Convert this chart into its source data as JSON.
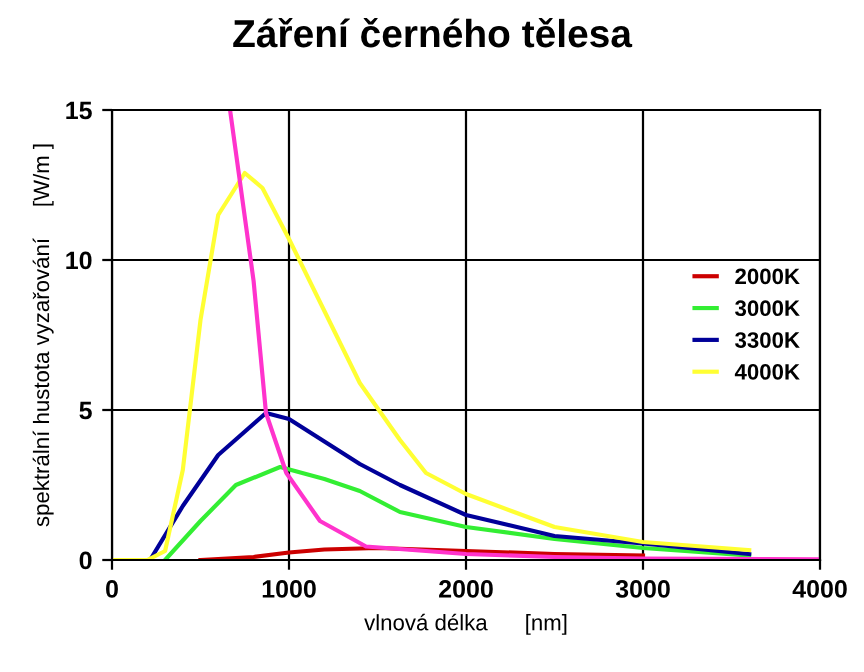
{
  "chart_data": {
    "type": "line",
    "title": "Záření černého tělesa",
    "xlabel": "vlnová délka      [nm]",
    "ylabel": "spektrální hustota vyzařování     [W/m ]",
    "xlim": [
      0,
      4000
    ],
    "ylim": [
      0,
      15
    ],
    "xticks": [
      0,
      1000,
      2000,
      3000,
      4000
    ],
    "yticks": [
      0,
      5,
      10,
      15
    ],
    "grid": true,
    "legend": "right",
    "marker": "none",
    "line_style": "solid",
    "series": [
      {
        "name": "2000K",
        "color": "#cc0000",
        "x": [
          500,
          800,
          1000,
          1200,
          1500,
          2000,
          2500,
          3000
        ],
        "values": [
          0,
          0.1,
          0.25,
          0.35,
          0.4,
          0.3,
          0.2,
          0.15
        ]
      },
      {
        "name": "3000K",
        "color": "#33ee33",
        "x": [
          300,
          500,
          700,
          950,
          1200,
          1400,
          1627,
          2000,
          2500,
          3000,
          3600
        ],
        "values": [
          0,
          1.3,
          2.5,
          3.1,
          2.7,
          2.3,
          1.6,
          1.1,
          0.7,
          0.4,
          0.15
        ]
      },
      {
        "name": "3300K",
        "color": "#000099",
        "x": [
          215,
          400,
          600,
          870,
          1000,
          1400,
          1627,
          2000,
          2500,
          3000,
          3600
        ],
        "values": [
          0,
          1.8,
          3.5,
          4.9,
          4.7,
          3.2,
          2.5,
          1.5,
          0.8,
          0.55,
          0.2
        ]
      },
      {
        "name": "4000K",
        "color": "#ffff33",
        "x": [
          0,
          200,
          300,
          400,
          500,
          600,
          750,
          850,
          1000,
          1200,
          1400,
          1627,
          1774,
          2000,
          2500,
          3000,
          3600
        ],
        "values": [
          0,
          0,
          0.3,
          3,
          8,
          11.5,
          12.9,
          12.4,
          10.7,
          8.3,
          5.9,
          4.0,
          2.9,
          2.2,
          1.1,
          0.6,
          0.33
        ]
      },
      {
        "color": "#ff33cc",
        "x": [
          667,
          800,
          870,
          985,
          1175,
          1435,
          2000,
          2500,
          3000,
          4000
        ],
        "values": [
          15,
          9.3,
          4.9,
          2.9,
          1.3,
          0.45,
          0.2,
          0.1,
          0.05,
          0.02
        ]
      }
    ]
  }
}
